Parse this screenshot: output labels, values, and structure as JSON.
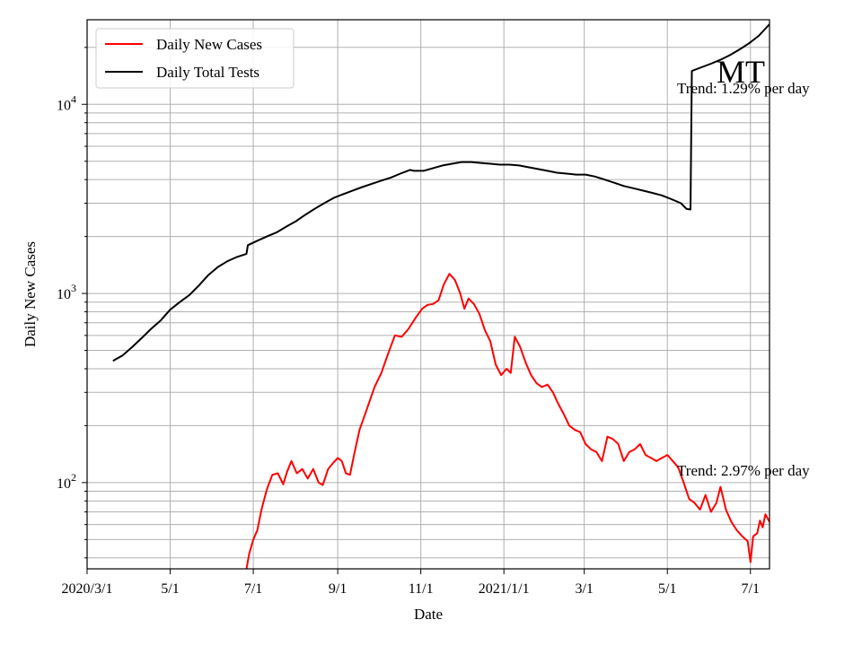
{
  "chart_data": {
    "type": "line",
    "state": "MT",
    "xlabel": "Date",
    "ylabel": "Daily New Cases",
    "y_scale": "log",
    "ylim": [
      35,
      28000
    ],
    "xlim": [
      "2020-03-01",
      "2021-07-15"
    ],
    "grid": true,
    "legend_position": "top-left",
    "x_ticks": [
      {
        "date": "2020-03-01",
        "label": "2020/3/1"
      },
      {
        "date": "2020-05-01",
        "label": "5/1"
      },
      {
        "date": "2020-07-01",
        "label": "7/1"
      },
      {
        "date": "2020-09-01",
        "label": "9/1"
      },
      {
        "date": "2020-11-01",
        "label": "11/1"
      },
      {
        "date": "2021-01-01",
        "label": "2021/1/1"
      },
      {
        "date": "2021-03-01",
        "label": "3/1"
      },
      {
        "date": "2021-05-01",
        "label": "5/1"
      },
      {
        "date": "2021-07-01",
        "label": "7/1"
      }
    ],
    "y_ticks": [
      {
        "value": 100,
        "base": "10",
        "exp": "2"
      },
      {
        "value": 1000,
        "base": "10",
        "exp": "3"
      },
      {
        "value": 10000,
        "base": "10",
        "exp": "4"
      }
    ],
    "series": [
      {
        "name": "Daily New Cases",
        "color": "#ff0000",
        "points": [
          [
            "2020-06-26",
            35
          ],
          [
            "2020-06-28",
            42
          ],
          [
            "2020-07-01",
            50
          ],
          [
            "2020-07-04",
            56
          ],
          [
            "2020-07-07",
            72
          ],
          [
            "2020-07-11",
            92
          ],
          [
            "2020-07-15",
            110
          ],
          [
            "2020-07-19",
            112
          ],
          [
            "2020-07-23",
            98
          ],
          [
            "2020-07-26",
            115
          ],
          [
            "2020-07-29",
            130
          ],
          [
            "2020-08-02",
            112
          ],
          [
            "2020-08-06",
            118
          ],
          [
            "2020-08-10",
            105
          ],
          [
            "2020-08-14",
            118
          ],
          [
            "2020-08-18",
            100
          ],
          [
            "2020-08-21",
            97
          ],
          [
            "2020-08-25",
            118
          ],
          [
            "2020-08-29",
            128
          ],
          [
            "2020-09-01",
            135
          ],
          [
            "2020-09-04",
            130
          ],
          [
            "2020-09-07",
            112
          ],
          [
            "2020-09-10",
            110
          ],
          [
            "2020-09-13",
            140
          ],
          [
            "2020-09-17",
            190
          ],
          [
            "2020-09-22",
            240
          ],
          [
            "2020-09-28",
            320
          ],
          [
            "2020-10-03",
            380
          ],
          [
            "2020-10-08",
            480
          ],
          [
            "2020-10-13",
            600
          ],
          [
            "2020-10-18",
            590
          ],
          [
            "2020-10-23",
            650
          ],
          [
            "2020-10-28",
            740
          ],
          [
            "2020-11-02",
            830
          ],
          [
            "2020-11-06",
            870
          ],
          [
            "2020-11-10",
            880
          ],
          [
            "2020-11-14",
            920
          ],
          [
            "2020-11-18",
            1120
          ],
          [
            "2020-11-22",
            1270
          ],
          [
            "2020-11-26",
            1180
          ],
          [
            "2020-11-30",
            1000
          ],
          [
            "2020-12-03",
            830
          ],
          [
            "2020-12-06",
            940
          ],
          [
            "2020-12-10",
            880
          ],
          [
            "2020-12-14",
            780
          ],
          [
            "2020-12-18",
            640
          ],
          [
            "2020-12-22",
            560
          ],
          [
            "2020-12-26",
            420
          ],
          [
            "2020-12-30",
            370
          ],
          [
            "2021-01-03",
            400
          ],
          [
            "2021-01-06",
            380
          ],
          [
            "2021-01-09",
            590
          ],
          [
            "2021-01-13",
            520
          ],
          [
            "2021-01-17",
            430
          ],
          [
            "2021-01-21",
            370
          ],
          [
            "2021-01-25",
            335
          ],
          [
            "2021-01-29",
            320
          ],
          [
            "2021-02-02",
            330
          ],
          [
            "2021-02-06",
            300
          ],
          [
            "2021-02-10",
            260
          ],
          [
            "2021-02-14",
            230
          ],
          [
            "2021-02-18",
            200
          ],
          [
            "2021-02-22",
            190
          ],
          [
            "2021-02-26",
            185
          ],
          [
            "2021-03-02",
            160
          ],
          [
            "2021-03-06",
            150
          ],
          [
            "2021-03-10",
            145
          ],
          [
            "2021-03-14",
            130
          ],
          [
            "2021-03-18",
            175
          ],
          [
            "2021-03-22",
            170
          ],
          [
            "2021-03-26",
            160
          ],
          [
            "2021-03-30",
            130
          ],
          [
            "2021-04-03",
            145
          ],
          [
            "2021-04-07",
            150
          ],
          [
            "2021-04-11",
            160
          ],
          [
            "2021-04-15",
            140
          ],
          [
            "2021-04-19",
            135
          ],
          [
            "2021-04-23",
            130
          ],
          [
            "2021-04-27",
            135
          ],
          [
            "2021-05-01",
            140
          ],
          [
            "2021-05-05",
            130
          ],
          [
            "2021-05-09",
            120
          ],
          [
            "2021-05-13",
            100
          ],
          [
            "2021-05-17",
            82
          ],
          [
            "2021-05-21",
            78
          ],
          [
            "2021-05-25",
            72
          ],
          [
            "2021-05-29",
            86
          ],
          [
            "2021-06-02",
            70
          ],
          [
            "2021-06-06",
            78
          ],
          [
            "2021-06-09",
            95
          ],
          [
            "2021-06-13",
            72
          ],
          [
            "2021-06-17",
            62
          ],
          [
            "2021-06-21",
            56
          ],
          [
            "2021-06-25",
            52
          ],
          [
            "2021-06-29",
            49
          ],
          [
            "2021-07-01",
            38
          ],
          [
            "2021-07-03",
            52
          ],
          [
            "2021-07-06",
            54
          ],
          [
            "2021-07-08",
            63
          ],
          [
            "2021-07-10",
            58
          ],
          [
            "2021-07-12",
            68
          ],
          [
            "2021-07-15",
            62
          ]
        ]
      },
      {
        "name": "Daily Total Tests",
        "color": "#000000",
        "points": [
          [
            "2020-03-20",
            440
          ],
          [
            "2020-03-27",
            470
          ],
          [
            "2020-04-03",
            520
          ],
          [
            "2020-04-10",
            580
          ],
          [
            "2020-04-17",
            650
          ],
          [
            "2020-04-24",
            720
          ],
          [
            "2020-05-01",
            820
          ],
          [
            "2020-05-08",
            900
          ],
          [
            "2020-05-15",
            980
          ],
          [
            "2020-05-22",
            1100
          ],
          [
            "2020-05-29",
            1250
          ],
          [
            "2020-06-05",
            1380
          ],
          [
            "2020-06-12",
            1480
          ],
          [
            "2020-06-19",
            1560
          ],
          [
            "2020-06-26",
            1620
          ],
          [
            "2020-06-27",
            1800
          ],
          [
            "2020-07-04",
            1900
          ],
          [
            "2020-07-11",
            2000
          ],
          [
            "2020-07-18",
            2100
          ],
          [
            "2020-07-25",
            2250
          ],
          [
            "2020-08-01",
            2400
          ],
          [
            "2020-08-08",
            2600
          ],
          [
            "2020-08-15",
            2800
          ],
          [
            "2020-08-22",
            3000
          ],
          [
            "2020-08-29",
            3200
          ],
          [
            "2020-09-05",
            3350
          ],
          [
            "2020-09-12",
            3500
          ],
          [
            "2020-09-19",
            3650
          ],
          [
            "2020-09-26",
            3800
          ],
          [
            "2020-10-03",
            3950
          ],
          [
            "2020-10-10",
            4100
          ],
          [
            "2020-10-17",
            4300
          ],
          [
            "2020-10-24",
            4500
          ],
          [
            "2020-10-27",
            4450
          ],
          [
            "2020-11-03",
            4450
          ],
          [
            "2020-11-10",
            4600
          ],
          [
            "2020-11-17",
            4750
          ],
          [
            "2020-11-24",
            4850
          ],
          [
            "2020-12-01",
            4950
          ],
          [
            "2020-12-08",
            4950
          ],
          [
            "2020-12-15",
            4900
          ],
          [
            "2020-12-22",
            4850
          ],
          [
            "2020-12-29",
            4800
          ],
          [
            "2021-01-05",
            4800
          ],
          [
            "2021-01-12",
            4750
          ],
          [
            "2021-01-19",
            4650
          ],
          [
            "2021-01-26",
            4550
          ],
          [
            "2021-02-02",
            4450
          ],
          [
            "2021-02-09",
            4350
          ],
          [
            "2021-02-16",
            4300
          ],
          [
            "2021-02-23",
            4250
          ],
          [
            "2021-03-02",
            4250
          ],
          [
            "2021-03-09",
            4150
          ],
          [
            "2021-03-16",
            4000
          ],
          [
            "2021-03-23",
            3850
          ],
          [
            "2021-03-30",
            3700
          ],
          [
            "2021-04-06",
            3600
          ],
          [
            "2021-04-13",
            3500
          ],
          [
            "2021-04-20",
            3400
          ],
          [
            "2021-04-27",
            3300
          ],
          [
            "2021-05-04",
            3150
          ],
          [
            "2021-05-11",
            3000
          ],
          [
            "2021-05-15",
            2800
          ],
          [
            "2021-05-18",
            2780
          ],
          [
            "2021-05-19",
            15000
          ],
          [
            "2021-05-26",
            15700
          ],
          [
            "2021-06-02",
            16400
          ],
          [
            "2021-06-09",
            17200
          ],
          [
            "2021-06-16",
            18200
          ],
          [
            "2021-06-23",
            19500
          ],
          [
            "2021-06-30",
            21000
          ],
          [
            "2021-07-07",
            23000
          ],
          [
            "2021-07-15",
            26500
          ]
        ]
      }
    ],
    "annotations": [
      {
        "text": "Trend: 1.29% per day",
        "series": "Daily Total Tests"
      },
      {
        "text": "Trend: 2.97% per day",
        "series": "Daily New Cases"
      }
    ]
  }
}
